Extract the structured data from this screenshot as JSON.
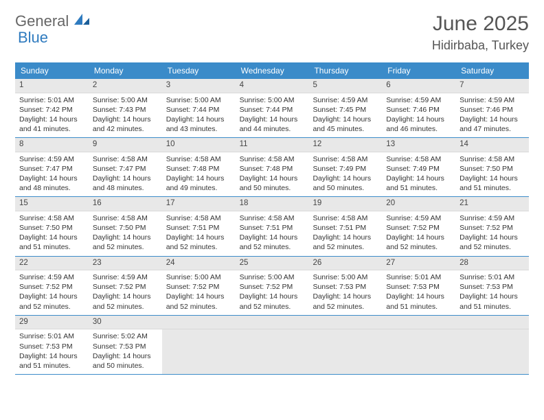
{
  "brand": {
    "general": "General",
    "blue": "Blue"
  },
  "title": "June 2025",
  "location": "Hidirbaba, Turkey",
  "colors": {
    "header_bg": "#3b8bc9",
    "header_text": "#ffffff",
    "daynum_bg": "#e8e8e8",
    "border": "#3b8bc9",
    "text": "#333333",
    "brand_blue": "#2f7bbf"
  },
  "day_names": [
    "Sunday",
    "Monday",
    "Tuesday",
    "Wednesday",
    "Thursday",
    "Friday",
    "Saturday"
  ],
  "weeks": [
    [
      {
        "n": "1",
        "sr": "5:01 AM",
        "ss": "7:42 PM",
        "dl": "14 hours and 41 minutes."
      },
      {
        "n": "2",
        "sr": "5:00 AM",
        "ss": "7:43 PM",
        "dl": "14 hours and 42 minutes."
      },
      {
        "n": "3",
        "sr": "5:00 AM",
        "ss": "7:44 PM",
        "dl": "14 hours and 43 minutes."
      },
      {
        "n": "4",
        "sr": "5:00 AM",
        "ss": "7:44 PM",
        "dl": "14 hours and 44 minutes."
      },
      {
        "n": "5",
        "sr": "4:59 AM",
        "ss": "7:45 PM",
        "dl": "14 hours and 45 minutes."
      },
      {
        "n": "6",
        "sr": "4:59 AM",
        "ss": "7:46 PM",
        "dl": "14 hours and 46 minutes."
      },
      {
        "n": "7",
        "sr": "4:59 AM",
        "ss": "7:46 PM",
        "dl": "14 hours and 47 minutes."
      }
    ],
    [
      {
        "n": "8",
        "sr": "4:59 AM",
        "ss": "7:47 PM",
        "dl": "14 hours and 48 minutes."
      },
      {
        "n": "9",
        "sr": "4:58 AM",
        "ss": "7:47 PM",
        "dl": "14 hours and 48 minutes."
      },
      {
        "n": "10",
        "sr": "4:58 AM",
        "ss": "7:48 PM",
        "dl": "14 hours and 49 minutes."
      },
      {
        "n": "11",
        "sr": "4:58 AM",
        "ss": "7:48 PM",
        "dl": "14 hours and 50 minutes."
      },
      {
        "n": "12",
        "sr": "4:58 AM",
        "ss": "7:49 PM",
        "dl": "14 hours and 50 minutes."
      },
      {
        "n": "13",
        "sr": "4:58 AM",
        "ss": "7:49 PM",
        "dl": "14 hours and 51 minutes."
      },
      {
        "n": "14",
        "sr": "4:58 AM",
        "ss": "7:50 PM",
        "dl": "14 hours and 51 minutes."
      }
    ],
    [
      {
        "n": "15",
        "sr": "4:58 AM",
        "ss": "7:50 PM",
        "dl": "14 hours and 51 minutes."
      },
      {
        "n": "16",
        "sr": "4:58 AM",
        "ss": "7:50 PM",
        "dl": "14 hours and 52 minutes."
      },
      {
        "n": "17",
        "sr": "4:58 AM",
        "ss": "7:51 PM",
        "dl": "14 hours and 52 minutes."
      },
      {
        "n": "18",
        "sr": "4:58 AM",
        "ss": "7:51 PM",
        "dl": "14 hours and 52 minutes."
      },
      {
        "n": "19",
        "sr": "4:58 AM",
        "ss": "7:51 PM",
        "dl": "14 hours and 52 minutes."
      },
      {
        "n": "20",
        "sr": "4:59 AM",
        "ss": "7:52 PM",
        "dl": "14 hours and 52 minutes."
      },
      {
        "n": "21",
        "sr": "4:59 AM",
        "ss": "7:52 PM",
        "dl": "14 hours and 52 minutes."
      }
    ],
    [
      {
        "n": "22",
        "sr": "4:59 AM",
        "ss": "7:52 PM",
        "dl": "14 hours and 52 minutes."
      },
      {
        "n": "23",
        "sr": "4:59 AM",
        "ss": "7:52 PM",
        "dl": "14 hours and 52 minutes."
      },
      {
        "n": "24",
        "sr": "5:00 AM",
        "ss": "7:52 PM",
        "dl": "14 hours and 52 minutes."
      },
      {
        "n": "25",
        "sr": "5:00 AM",
        "ss": "7:52 PM",
        "dl": "14 hours and 52 minutes."
      },
      {
        "n": "26",
        "sr": "5:00 AM",
        "ss": "7:53 PM",
        "dl": "14 hours and 52 minutes."
      },
      {
        "n": "27",
        "sr": "5:01 AM",
        "ss": "7:53 PM",
        "dl": "14 hours and 51 minutes."
      },
      {
        "n": "28",
        "sr": "5:01 AM",
        "ss": "7:53 PM",
        "dl": "14 hours and 51 minutes."
      }
    ],
    [
      {
        "n": "29",
        "sr": "5:01 AM",
        "ss": "7:53 PM",
        "dl": "14 hours and 51 minutes."
      },
      {
        "n": "30",
        "sr": "5:02 AM",
        "ss": "7:53 PM",
        "dl": "14 hours and 50 minutes."
      },
      null,
      null,
      null,
      null,
      null
    ]
  ],
  "labels": {
    "sunrise": "Sunrise: ",
    "sunset": "Sunset: ",
    "daylight": "Daylight: "
  }
}
